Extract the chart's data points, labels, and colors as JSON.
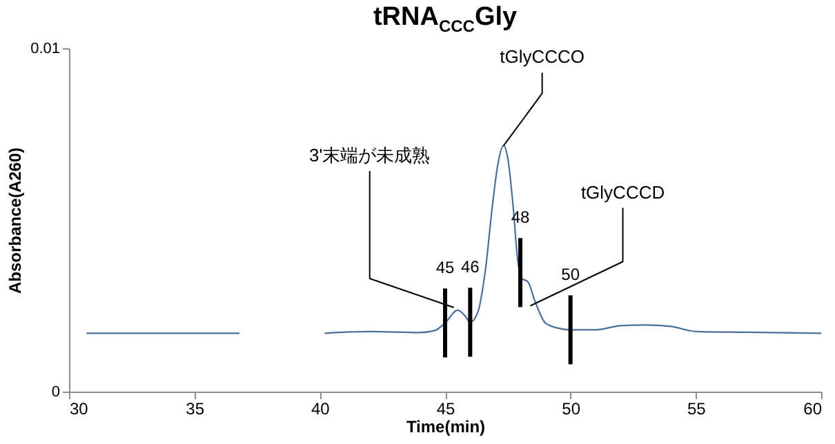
{
  "chart_data": {
    "type": "line",
    "title": "tRNA$_{CCC}$Gly",
    "xlabel": "Time(min)",
    "ylabel": "Absorbance(A260)",
    "xlim": [
      30,
      60
    ],
    "xticks": [
      30,
      35,
      40,
      45,
      50,
      55,
      60
    ],
    "ylim": [
      0,
      0.01
    ],
    "yticks": [
      0,
      0.01
    ],
    "grid": false,
    "x": [
      30.7,
      33,
      35,
      36.8,
      38.5,
      40.2,
      42,
      44,
      44.6,
      45,
      45.5,
      45.8,
      46.0,
      46.3,
      46.6,
      46.9,
      47.1,
      47.33,
      47.5,
      47.7,
      47.9,
      48.05,
      48.3,
      48.6,
      49,
      49.5,
      50,
      51,
      52,
      53,
      54,
      55,
      57,
      60
    ],
    "series": [
      {
        "color": "#4a6f9a",
        "values": [
          0.0017,
          0.0017,
          0.0017,
          0.0017,
          null,
          0.0017,
          0.00175,
          0.00172,
          0.00178,
          0.002,
          0.00237,
          0.0022,
          0.00202,
          0.0023,
          0.0035,
          0.0055,
          0.0066,
          0.00716,
          0.0068,
          0.0055,
          0.0038,
          0.0033,
          0.0032,
          0.0026,
          0.002,
          0.00185,
          0.0018,
          0.0018,
          0.00192,
          0.00194,
          0.0019,
          0.00175,
          0.00173,
          0.0017
        ]
      }
    ],
    "ref_lines": [
      {
        "axis": "x",
        "value": 45,
        "label": "45",
        "color": "#000000"
      },
      {
        "axis": "x",
        "value": 46,
        "label": "46",
        "color": "#000000"
      },
      {
        "axis": "x",
        "value": 48,
        "label": "48",
        "color": "#000000"
      },
      {
        "axis": "x",
        "value": 50,
        "label": "50",
        "color": "#000000"
      }
    ],
    "annotations": [
      {
        "text": "3'末端が未成熟",
        "x": 45.35,
        "y": 0.00245
      },
      {
        "text": "tGlyCCCO",
        "x": 47.33,
        "y": 0.00716
      },
      {
        "text": "tGlyCCCD",
        "x": 48.4,
        "y": 0.0025
      }
    ]
  }
}
